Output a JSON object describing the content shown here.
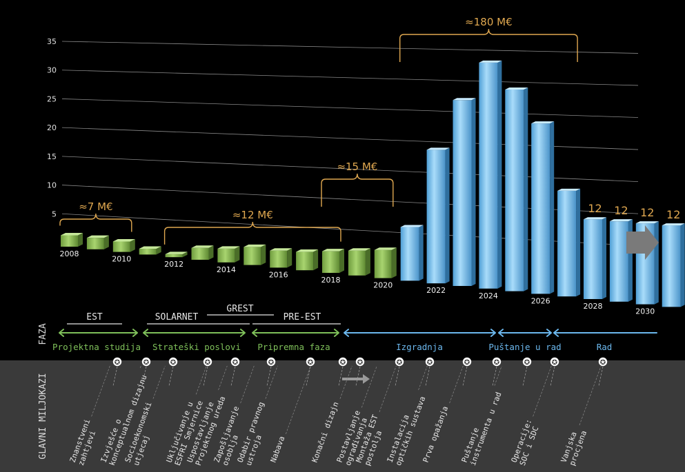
{
  "chart_data": {
    "type": "bar",
    "ylim": [
      0,
      35
    ],
    "yticks": [
      5,
      10,
      15,
      20,
      25,
      30,
      35
    ],
    "xlabels": [
      "2008",
      "2010",
      "2012",
      "2014",
      "2016",
      "2018",
      "2020",
      "2022",
      "2024",
      "2026",
      "2028",
      "2030"
    ],
    "bars": [
      {
        "year": 2008,
        "value": 2.0,
        "phase": "pre"
      },
      {
        "year": 2009,
        "value": 2.0,
        "phase": "pre"
      },
      {
        "year": 2010,
        "value": 1.8,
        "phase": "pre"
      },
      {
        "year": 2011,
        "value": 1.0,
        "phase": "pre"
      },
      {
        "year": 2012,
        "value": 0.5,
        "phase": "pre"
      },
      {
        "year": 2013,
        "value": 2.0,
        "phase": "pre"
      },
      {
        "year": 2014,
        "value": 2.3,
        "phase": "pre"
      },
      {
        "year": 2015,
        "value": 3.0,
        "phase": "pre"
      },
      {
        "year": 2016,
        "value": 2.8,
        "phase": "pre"
      },
      {
        "year": 2017,
        "value": 3.0,
        "phase": "pre"
      },
      {
        "year": 2018,
        "value": 3.5,
        "phase": "pre"
      },
      {
        "year": 2019,
        "value": 4.0,
        "phase": "pre"
      },
      {
        "year": 2020,
        "value": 4.5,
        "phase": "pre"
      },
      {
        "year": 2021,
        "value": 8.5,
        "phase": "build"
      },
      {
        "year": 2022,
        "value": 21,
        "phase": "build"
      },
      {
        "year": 2023,
        "value": 29,
        "phase": "build"
      },
      {
        "year": 2024,
        "value": 35,
        "phase": "build"
      },
      {
        "year": 2025,
        "value": 31,
        "phase": "build"
      },
      {
        "year": 2026,
        "value": 26,
        "phase": "build"
      },
      {
        "year": 2027,
        "value": 16,
        "phase": "build"
      },
      {
        "year": 2028,
        "value": 12,
        "phase": "build"
      },
      {
        "year": 2029,
        "value": 12,
        "phase": "build"
      },
      {
        "year": 2030,
        "value": 12,
        "phase": "build"
      },
      {
        "year": 2031,
        "value": 12,
        "phase": "build"
      }
    ],
    "bar_value_labels": [
      "12",
      "12",
      "12",
      "12"
    ],
    "cost_brackets": [
      {
        "label": "≈7 M€",
        "from_year": 2008,
        "to_year": 2010
      },
      {
        "label": "≈12 M€",
        "from_year": 2012,
        "to_year": 2018
      },
      {
        "label": "≈15 M€",
        "from_year": 2018,
        "to_year": 2020
      },
      {
        "label": "≈180 M€",
        "from_year": 2021,
        "to_year": 2027
      }
    ]
  },
  "phase_section": {
    "axis_label": "FAZA",
    "groups": [
      {
        "label": "EST"
      },
      {
        "label": "SOLARNET"
      },
      {
        "label": "GREST"
      },
      {
        "label": "PRE-EST"
      }
    ],
    "phases": [
      {
        "label": "Projektna studija"
      },
      {
        "label": "Strateški poslovi"
      },
      {
        "label": "Pripremna faza"
      },
      {
        "label": "Izgradnja"
      },
      {
        "label": "Puštanje u rad"
      },
      {
        "label": "Rad"
      }
    ]
  },
  "milestones": {
    "axis_label": "GLAVNI MILJOKAZI",
    "items": [
      {
        "label": "Znanstveni\nzahtjevi"
      },
      {
        "label": "Izvješće o\nkonceptualnom dizajnu"
      },
      {
        "label": "Socioekonomski\nutjecaj"
      },
      {
        "label": "Uključivanje u\nESFRI Smjernice"
      },
      {
        "label": "Uspostavljanje\nProjektnog ureda"
      },
      {
        "label": "Zapošljavanje\nosoblja"
      },
      {
        "label": "Odabir pravnog\nustroja"
      },
      {
        "label": "Nabava"
      },
      {
        "label": "Konačni dizajn"
      },
      {
        "label": "Postavljanje\nograđivanja"
      },
      {
        "label": "Montaža EST\npostolja"
      },
      {
        "label": "Instalacija\noptičkih sustava"
      },
      {
        "label": "Prva opažanja"
      },
      {
        "label": "Puštanje\ninstrumenta u rad"
      },
      {
        "label": "Operacije:\nSOC i SDC"
      },
      {
        "label": "Vanjska\nprocjena"
      }
    ]
  },
  "colors": {
    "background": "#000000",
    "green_bar": "#8fc15a",
    "blue_bar": "#7ec8f2",
    "bracket": "#e0a850",
    "phase_green": "#7fc05a",
    "phase_blue": "#6cb8ee",
    "milestone_band": "#3a3a3a",
    "grid": "#8a8a8a"
  }
}
